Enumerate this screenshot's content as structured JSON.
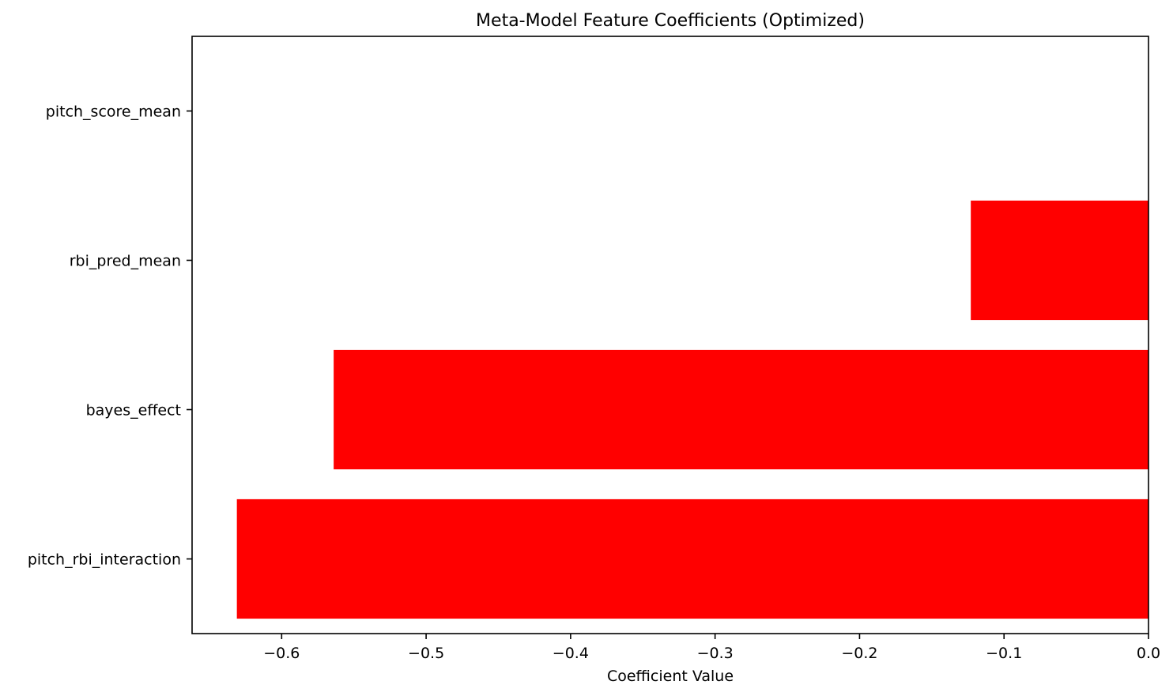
{
  "chart_data": {
    "type": "bar",
    "orientation": "horizontal",
    "title": "Meta-Model Feature Coefficients (Optimized)",
    "xlabel": "Coefficient Value",
    "ylabel": "",
    "categories": [
      "pitch_score_mean",
      "rbi_pred_mean",
      "bayes_effect",
      "pitch_rbi_interaction"
    ],
    "values": [
      0.0,
      -0.123,
      -0.564,
      -0.631
    ],
    "xlim": [
      -0.662,
      0.0
    ],
    "xticks": [
      -0.6,
      -0.5,
      -0.4,
      -0.3,
      -0.2,
      -0.1,
      0.0
    ],
    "xtick_labels": [
      "−0.6",
      "−0.5",
      "−0.4",
      "−0.3",
      "−0.2",
      "−0.1",
      "0.0"
    ],
    "bar_color": "#ff0000",
    "grid": false,
    "legend": "none"
  }
}
